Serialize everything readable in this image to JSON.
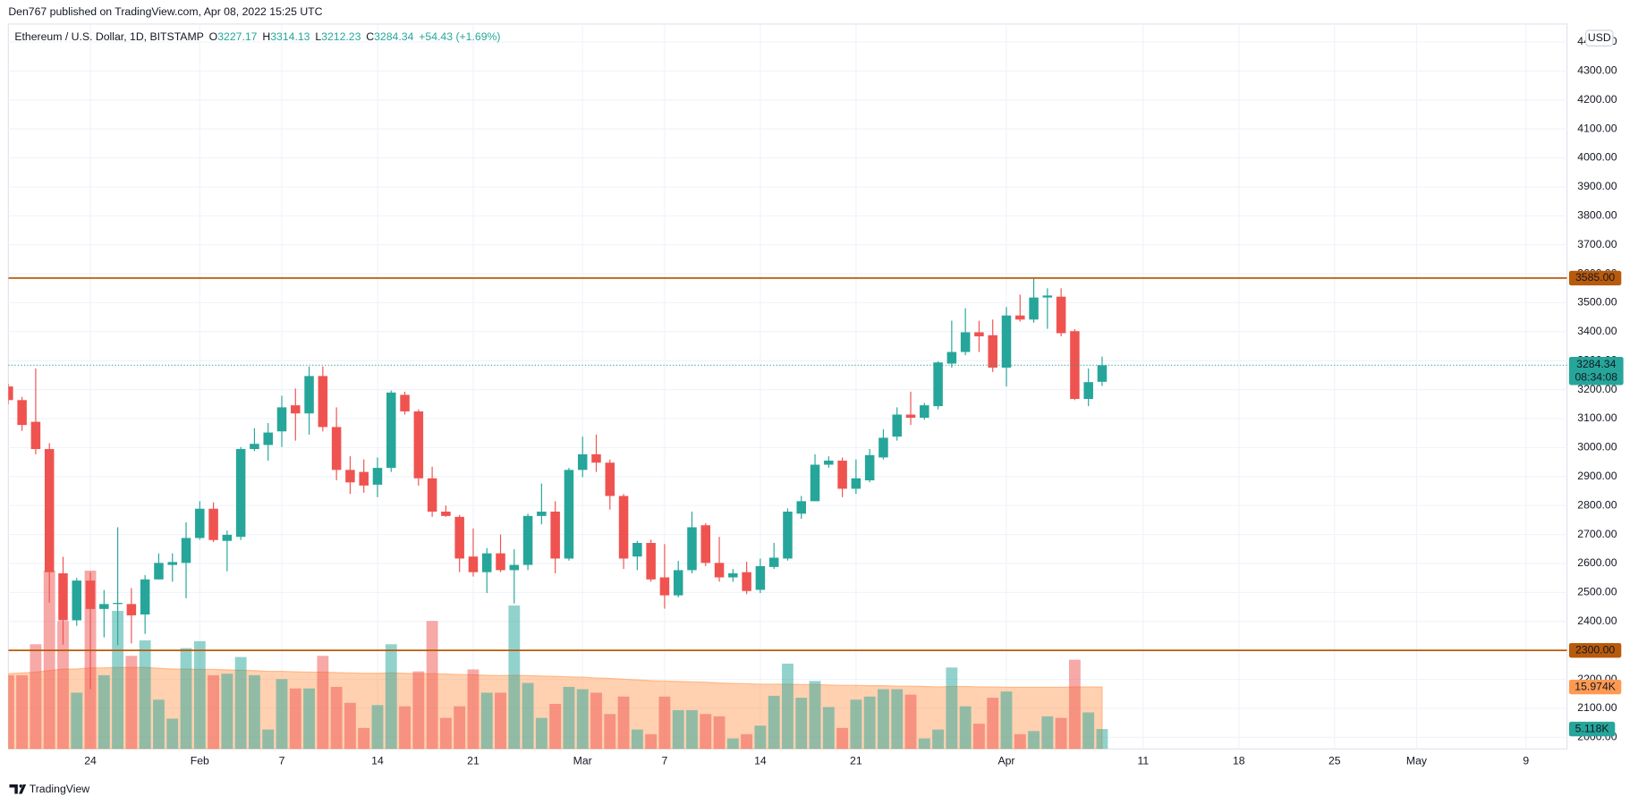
{
  "header": {
    "text": "Den767 published on TradingView.com, Apr 08, 2022 15:25 UTC"
  },
  "footer": {
    "brand": "TradingView"
  },
  "chart_data": {
    "type": "candlestick",
    "symbol": "Ethereum / U.S. Dollar, 1D, BITSTAMP",
    "legend_labels": [
      "O",
      "H",
      "L",
      "C"
    ],
    "change": "+54.43 (+1.69%)",
    "currency": "USD",
    "countdown": "08:34:08",
    "up_color": "#26a69a",
    "down_color": "#ef5350",
    "level_color": "#b85a0c",
    "ma_color": "#ff9a52",
    "xlim": [
      "2022-01-18",
      "2022-05-12"
    ],
    "ylim": [
      1960,
      4462
    ],
    "volume_lim": [
      0,
      187
    ],
    "grid": true,
    "xticks": [
      {
        "value": "2022-01-24",
        "label": "24"
      },
      {
        "value": "2022-02-01",
        "label": "Feb"
      },
      {
        "value": "2022-02-07",
        "label": "7"
      },
      {
        "value": "2022-02-14",
        "label": "14"
      },
      {
        "value": "2022-02-21",
        "label": "21"
      },
      {
        "value": "2022-03-01",
        "label": "Mar"
      },
      {
        "value": "2022-03-07",
        "label": "7"
      },
      {
        "value": "2022-03-14",
        "label": "14"
      },
      {
        "value": "2022-03-21",
        "label": "21"
      },
      {
        "value": "2022-04-01",
        "label": "Apr"
      },
      {
        "value": "2022-04-11",
        "label": "11"
      },
      {
        "value": "2022-04-18",
        "label": "18"
      },
      {
        "value": "2022-04-25",
        "label": "25"
      },
      {
        "value": "2022-05-01",
        "label": "May"
      },
      {
        "value": "2022-05-09",
        "label": "9"
      }
    ],
    "yticks": [
      {
        "value": 2000,
        "label": "2000.00"
      },
      {
        "value": 2100,
        "label": "2100.00"
      },
      {
        "value": 2200,
        "label": "2200.00"
      },
      {
        "value": 2300,
        "label": "2300.00"
      },
      {
        "value": 2400,
        "label": "2400.00"
      },
      {
        "value": 2500,
        "label": "2500.00"
      },
      {
        "value": 2600,
        "label": "2600.00"
      },
      {
        "value": 2700,
        "label": "2700.00"
      },
      {
        "value": 2800,
        "label": "2800.00"
      },
      {
        "value": 2900,
        "label": "2900.00"
      },
      {
        "value": 3000,
        "label": "3000.00"
      },
      {
        "value": 3100,
        "label": "3100.00"
      },
      {
        "value": 3200,
        "label": "3200.00"
      },
      {
        "value": 3300,
        "label": "3300.00"
      },
      {
        "value": 3400,
        "label": "3400.00"
      },
      {
        "value": 3500,
        "label": "3500.00"
      },
      {
        "value": 3600,
        "label": "3600.00"
      },
      {
        "value": 3700,
        "label": "3700.00"
      },
      {
        "value": 3800,
        "label": "3800.00"
      },
      {
        "value": 3900,
        "label": "3900.00"
      },
      {
        "value": 4000,
        "label": "4000.00"
      },
      {
        "value": 4100,
        "label": "4100.00"
      },
      {
        "value": 4200,
        "label": "4200.00"
      },
      {
        "value": 4300,
        "label": "4300.00"
      },
      {
        "value": 4400,
        "label": "4400.00"
      }
    ],
    "levels": [
      {
        "value": 3585,
        "label": "3585.00"
      },
      {
        "value": 2300,
        "label": "2300.00"
      }
    ],
    "volume_label": "5.118K",
    "volume_ma_label": "15.974K",
    "volume_ma": [
      19.4,
      19.6,
      19.8,
      20.2,
      20.6,
      20.6,
      20.9,
      20.9,
      21.0,
      21.0,
      21.0,
      20.8,
      20.6,
      20.6,
      20.5,
      20.5,
      20.4,
      20.3,
      20.2,
      20.0,
      20.0,
      19.9,
      19.8,
      19.8,
      19.7,
      19.6,
      19.5,
      19.5,
      19.6,
      19.5,
      19.4,
      19.4,
      19.3,
      19.2,
      19.1,
      19.0,
      18.9,
      19.0,
      18.9,
      18.8,
      18.7,
      18.6,
      18.5,
      18.3,
      18.2,
      18.0,
      17.8,
      17.6,
      17.5,
      17.4,
      17.3,
      17.2,
      17.0,
      16.9,
      16.8,
      16.7,
      16.7,
      16.7,
      16.6,
      16.6,
      16.5,
      16.4,
      16.4,
      16.3,
      16.3,
      16.2,
      16.2,
      16.1,
      16.0,
      16.1,
      16.1,
      16.0,
      16.0,
      15.9,
      15.9,
      15.9,
      15.9,
      15.9,
      16.0,
      16.0,
      15.974
    ],
    "candles": [
      {
        "date": "2022-01-18",
        "open": 3211,
        "high": 3220,
        "low": 3150,
        "close": 3164,
        "volume": 19
      },
      {
        "date": "2022-01-19",
        "open": 3164,
        "high": 3175,
        "low": 3058,
        "close": 3078,
        "volume": 19
      },
      {
        "date": "2022-01-20",
        "open": 3089,
        "high": 3273,
        "low": 2977,
        "close": 2995,
        "volume": 27
      },
      {
        "date": "2022-01-21",
        "open": 2995,
        "high": 3015,
        "low": 2465,
        "close": 2570,
        "volume": 46
      },
      {
        "date": "2022-01-22",
        "open": 2566,
        "high": 2623,
        "low": 2320,
        "close": 2404,
        "volume": 33
      },
      {
        "date": "2022-01-23",
        "open": 2404,
        "high": 2550,
        "low": 2385,
        "close": 2541,
        "volume": 14.5
      },
      {
        "date": "2022-01-24",
        "open": 2541,
        "high": 2570,
        "low": 2166,
        "close": 2443,
        "volume": 46
      },
      {
        "date": "2022-01-25",
        "open": 2443,
        "high": 2508,
        "low": 2345,
        "close": 2460,
        "volume": 19
      },
      {
        "date": "2022-01-26",
        "open": 2460,
        "high": 2725,
        "low": 2318,
        "close": 2464,
        "volume": 35.6
      },
      {
        "date": "2022-01-27",
        "open": 2460,
        "high": 2515,
        "low": 2324,
        "close": 2421,
        "volume": 24
      },
      {
        "date": "2022-01-28",
        "open": 2424,
        "high": 2560,
        "low": 2357,
        "close": 2545,
        "volume": 28
      },
      {
        "date": "2022-01-29",
        "open": 2545,
        "high": 2635,
        "low": 2545,
        "close": 2602,
        "volume": 12.7
      },
      {
        "date": "2022-01-30",
        "open": 2595,
        "high": 2635,
        "low": 2537,
        "close": 2605,
        "volume": 7.8
      },
      {
        "date": "2022-01-31",
        "open": 2602,
        "high": 2742,
        "low": 2480,
        "close": 2688,
        "volume": 26
      },
      {
        "date": "2022-02-01",
        "open": 2688,
        "high": 2815,
        "low": 2682,
        "close": 2789,
        "volume": 27.8
      },
      {
        "date": "2022-02-02",
        "open": 2789,
        "high": 2811,
        "low": 2674,
        "close": 2681,
        "volume": 19
      },
      {
        "date": "2022-02-03",
        "open": 2678,
        "high": 2714,
        "low": 2573,
        "close": 2699,
        "volume": 19.4
      },
      {
        "date": "2022-02-04",
        "open": 2692,
        "high": 3002,
        "low": 2681,
        "close": 2995,
        "volume": 23.7
      },
      {
        "date": "2022-02-05",
        "open": 2995,
        "high": 3067,
        "low": 2988,
        "close": 3013,
        "volume": 19
      },
      {
        "date": "2022-02-06",
        "open": 3009,
        "high": 3085,
        "low": 2955,
        "close": 3052,
        "volume": 5
      },
      {
        "date": "2022-02-07",
        "open": 3056,
        "high": 3179,
        "low": 3002,
        "close": 3139,
        "volume": 18
      },
      {
        "date": "2022-02-08",
        "open": 3146,
        "high": 3204,
        "low": 3024,
        "close": 3118,
        "volume": 15.6
      },
      {
        "date": "2022-02-09",
        "open": 3118,
        "high": 3280,
        "low": 3045,
        "close": 3247,
        "volume": 15.6
      },
      {
        "date": "2022-02-10",
        "open": 3247,
        "high": 3280,
        "low": 3056,
        "close": 3071,
        "volume": 24
      },
      {
        "date": "2022-02-11",
        "open": 3071,
        "high": 3139,
        "low": 2887,
        "close": 2923,
        "volume": 16
      },
      {
        "date": "2022-02-12",
        "open": 2923,
        "high": 2970,
        "low": 2840,
        "close": 2880,
        "volume": 11.9
      },
      {
        "date": "2022-02-13",
        "open": 2916,
        "high": 2959,
        "low": 2844,
        "close": 2869,
        "volume": 5.4
      },
      {
        "date": "2022-02-14",
        "open": 2872,
        "high": 2966,
        "low": 2829,
        "close": 2930,
        "volume": 11.3
      },
      {
        "date": "2022-02-15",
        "open": 2930,
        "high": 3197,
        "low": 2916,
        "close": 3190,
        "volume": 27
      },
      {
        "date": "2022-02-16",
        "open": 3182,
        "high": 3193,
        "low": 3114,
        "close": 3125,
        "volume": 11
      },
      {
        "date": "2022-02-17",
        "open": 3125,
        "high": 3132,
        "low": 2869,
        "close": 2894,
        "volume": 20
      },
      {
        "date": "2022-02-18",
        "open": 2894,
        "high": 2934,
        "low": 2761,
        "close": 2779,
        "volume": 33
      },
      {
        "date": "2022-02-19",
        "open": 2779,
        "high": 2800,
        "low": 2761,
        "close": 2764,
        "volume": 8
      },
      {
        "date": "2022-02-20",
        "open": 2761,
        "high": 2768,
        "low": 2570,
        "close": 2617,
        "volume": 11
      },
      {
        "date": "2022-02-21",
        "open": 2624,
        "high": 2721,
        "low": 2555,
        "close": 2570,
        "volume": 20.5
      },
      {
        "date": "2022-02-22",
        "open": 2570,
        "high": 2653,
        "low": 2498,
        "close": 2635,
        "volume": 14.5
      },
      {
        "date": "2022-02-23",
        "open": 2635,
        "high": 2700,
        "low": 2570,
        "close": 2577,
        "volume": 14.5
      },
      {
        "date": "2022-02-24",
        "open": 2577,
        "high": 2649,
        "low": 2462,
        "close": 2595,
        "volume": 37
      },
      {
        "date": "2022-02-25",
        "open": 2595,
        "high": 2772,
        "low": 2577,
        "close": 2764,
        "volume": 17
      },
      {
        "date": "2022-02-26",
        "open": 2764,
        "high": 2876,
        "low": 2735,
        "close": 2779,
        "volume": 8
      },
      {
        "date": "2022-02-27",
        "open": 2779,
        "high": 2815,
        "low": 2566,
        "close": 2617,
        "volume": 11.6
      },
      {
        "date": "2022-02-28",
        "open": 2617,
        "high": 2930,
        "low": 2610,
        "close": 2923,
        "volume": 16
      },
      {
        "date": "2022-03-01",
        "open": 2923,
        "high": 3038,
        "low": 2898,
        "close": 2977,
        "volume": 15.4
      },
      {
        "date": "2022-03-02",
        "open": 2977,
        "high": 3045,
        "low": 2916,
        "close": 2948,
        "volume": 14.5
      },
      {
        "date": "2022-03-03",
        "open": 2948,
        "high": 2959,
        "low": 2786,
        "close": 2833,
        "volume": 9
      },
      {
        "date": "2022-03-04",
        "open": 2833,
        "high": 2840,
        "low": 2581,
        "close": 2617,
        "volume": 13.5
      },
      {
        "date": "2022-03-05",
        "open": 2624,
        "high": 2678,
        "low": 2577,
        "close": 2671,
        "volume": 5
      },
      {
        "date": "2022-03-06",
        "open": 2671,
        "high": 2682,
        "low": 2537,
        "close": 2545,
        "volume": 3.8
      },
      {
        "date": "2022-03-07",
        "open": 2552,
        "high": 2667,
        "low": 2444,
        "close": 2490,
        "volume": 13.5
      },
      {
        "date": "2022-03-08",
        "open": 2490,
        "high": 2609,
        "low": 2483,
        "close": 2577,
        "volume": 10
      },
      {
        "date": "2022-03-09",
        "open": 2577,
        "high": 2779,
        "low": 2566,
        "close": 2725,
        "volume": 10
      },
      {
        "date": "2022-03-10",
        "open": 2732,
        "high": 2739,
        "low": 2591,
        "close": 2602,
        "volume": 9
      },
      {
        "date": "2022-03-11",
        "open": 2602,
        "high": 2692,
        "low": 2537,
        "close": 2552,
        "volume": 8.4
      },
      {
        "date": "2022-03-12",
        "open": 2552,
        "high": 2581,
        "low": 2537,
        "close": 2566,
        "volume": 2.7
      },
      {
        "date": "2022-03-13",
        "open": 2570,
        "high": 2606,
        "low": 2494,
        "close": 2505,
        "volume": 3.8
      },
      {
        "date": "2022-03-14",
        "open": 2509,
        "high": 2617,
        "low": 2498,
        "close": 2591,
        "volume": 6
      },
      {
        "date": "2022-03-15",
        "open": 2588,
        "high": 2671,
        "low": 2581,
        "close": 2620,
        "volume": 13.7
      },
      {
        "date": "2022-03-16",
        "open": 2617,
        "high": 2790,
        "low": 2610,
        "close": 2779,
        "volume": 22
      },
      {
        "date": "2022-03-17",
        "open": 2772,
        "high": 2833,
        "low": 2754,
        "close": 2815,
        "volume": 13.2
      },
      {
        "date": "2022-03-18",
        "open": 2815,
        "high": 2977,
        "low": 2815,
        "close": 2941,
        "volume": 17.5
      },
      {
        "date": "2022-03-19",
        "open": 2941,
        "high": 2970,
        "low": 2930,
        "close": 2955,
        "volume": 10.8
      },
      {
        "date": "2022-03-20",
        "open": 2955,
        "high": 2966,
        "low": 2829,
        "close": 2858,
        "volume": 5.4
      },
      {
        "date": "2022-03-21",
        "open": 2858,
        "high": 2959,
        "low": 2840,
        "close": 2894,
        "volume": 12.7
      },
      {
        "date": "2022-03-22",
        "open": 2887,
        "high": 2995,
        "low": 2880,
        "close": 2974,
        "volume": 13.5
      },
      {
        "date": "2022-03-23",
        "open": 2966,
        "high": 3063,
        "low": 2959,
        "close": 3034,
        "volume": 15.4
      },
      {
        "date": "2022-03-24",
        "open": 3038,
        "high": 3139,
        "low": 3024,
        "close": 3114,
        "volume": 15.4
      },
      {
        "date": "2022-03-25",
        "open": 3114,
        "high": 3193,
        "low": 3078,
        "close": 3103,
        "volume": 14
      },
      {
        "date": "2022-03-26",
        "open": 3103,
        "high": 3154,
        "low": 3096,
        "close": 3146,
        "volume": 2.7
      },
      {
        "date": "2022-03-27",
        "open": 3143,
        "high": 3298,
        "low": 3132,
        "close": 3294,
        "volume": 5
      },
      {
        "date": "2022-03-28",
        "open": 3290,
        "high": 3438,
        "low": 3276,
        "close": 3330,
        "volume": 21
      },
      {
        "date": "2022-03-29",
        "open": 3330,
        "high": 3481,
        "low": 3319,
        "close": 3398,
        "volume": 11
      },
      {
        "date": "2022-03-30",
        "open": 3398,
        "high": 3438,
        "low": 3330,
        "close": 3384,
        "volume": 6.5
      },
      {
        "date": "2022-03-31",
        "open": 3388,
        "high": 3442,
        "low": 3261,
        "close": 3276,
        "volume": 13.2
      },
      {
        "date": "2022-04-01",
        "open": 3276,
        "high": 3485,
        "low": 3211,
        "close": 3456,
        "volume": 14.8
      },
      {
        "date": "2022-04-02",
        "open": 3456,
        "high": 3528,
        "low": 3435,
        "close": 3442,
        "volume": 3.8
      },
      {
        "date": "2022-04-03",
        "open": 3442,
        "high": 3583,
        "low": 3431,
        "close": 3518,
        "volume": 4.6
      },
      {
        "date": "2022-04-04",
        "open": 3518,
        "high": 3550,
        "low": 3410,
        "close": 3525,
        "volume": 8.4
      },
      {
        "date": "2022-04-05",
        "open": 3521,
        "high": 3550,
        "low": 3384,
        "close": 3395,
        "volume": 8
      },
      {
        "date": "2022-04-06",
        "open": 3402,
        "high": 3409,
        "low": 3164,
        "close": 3168,
        "volume": 23
      },
      {
        "date": "2022-04-07",
        "open": 3168,
        "high": 3273,
        "low": 3143,
        "close": 3226,
        "volume": 9.4
      },
      {
        "date": "2022-04-08",
        "open": 3227.17,
        "high": 3314.13,
        "low": 3212.23,
        "close": 3284.34,
        "volume": 5.118
      }
    ]
  }
}
